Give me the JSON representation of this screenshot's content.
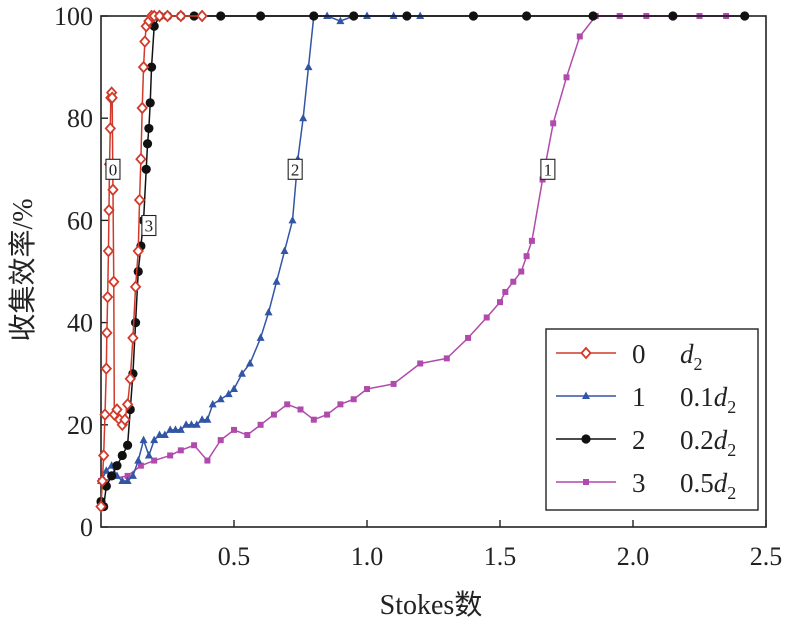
{
  "chart_data": {
    "type": "line",
    "xlabel": "Stokes数",
    "ylabel": "收集效率/%",
    "xlim": [
      0,
      2.5
    ],
    "ylim": [
      0,
      100
    ],
    "x_ticks": [
      "0.5",
      "1.0",
      "1.5",
      "2.0",
      "2.5"
    ],
    "y_ticks": [
      "0",
      "20",
      "40",
      "60",
      "80",
      "100"
    ],
    "grid": false,
    "legend_position": "bottom-right",
    "series": [
      {
        "name": "0",
        "legend_label": "d2",
        "color": "#d13a2a",
        "marker": "diamond-open",
        "x": [
          0.0,
          0.005,
          0.01,
          0.015,
          0.02,
          0.022,
          0.025,
          0.028,
          0.03,
          0.032,
          0.035,
          0.037,
          0.04,
          0.042,
          0.045,
          0.048,
          0.05,
          0.06,
          0.07,
          0.08,
          0.09,
          0.1,
          0.11,
          0.12,
          0.13,
          0.14,
          0.145,
          0.15,
          0.155,
          0.16,
          0.165,
          0.17,
          0.18,
          0.19,
          0.2,
          0.22,
          0.25,
          0.3,
          0.38
        ],
        "y": [
          4,
          9,
          14,
          22,
          31,
          38,
          45,
          54,
          62,
          71,
          78,
          84,
          85,
          84,
          66,
          48,
          22,
          23,
          21,
          20,
          21,
          24,
          29,
          37,
          47,
          54,
          64,
          72,
          82,
          90,
          95,
          98,
          99,
          100,
          100,
          100,
          100,
          100,
          100
        ]
      },
      {
        "name": "1",
        "legend_label": "0.1d2",
        "color": "#3355a5",
        "marker": "triangle",
        "x": [
          0.0,
          0.02,
          0.04,
          0.06,
          0.08,
          0.1,
          0.12,
          0.14,
          0.16,
          0.18,
          0.2,
          0.22,
          0.24,
          0.26,
          0.28,
          0.3,
          0.32,
          0.34,
          0.36,
          0.38,
          0.4,
          0.42,
          0.45,
          0.48,
          0.5,
          0.53,
          0.56,
          0.6,
          0.63,
          0.66,
          0.69,
          0.72,
          0.74,
          0.76,
          0.78,
          0.8,
          0.85,
          0.9,
          0.95,
          1.0,
          1.1,
          1.2
        ],
        "y": [
          9,
          11,
          12,
          10,
          9,
          9,
          10,
          13,
          17,
          14,
          17,
          18,
          18,
          19,
          19,
          19,
          20,
          20,
          20,
          21,
          21,
          24,
          25,
          26,
          27,
          30,
          32,
          37,
          42,
          48,
          54,
          60,
          72,
          80,
          90,
          100,
          100,
          99,
          100,
          100,
          100,
          100
        ]
      },
      {
        "name": "2",
        "legend_label": "0.2d2",
        "color": "#111111",
        "marker": "circle",
        "x": [
          0.0,
          0.01,
          0.02,
          0.04,
          0.06,
          0.08,
          0.1,
          0.11,
          0.12,
          0.13,
          0.14,
          0.15,
          0.16,
          0.17,
          0.175,
          0.18,
          0.185,
          0.19,
          0.2,
          0.22,
          0.25,
          0.3,
          0.35,
          0.45,
          0.6,
          0.8,
          0.95,
          1.15,
          1.4,
          1.6,
          1.85,
          2.15,
          2.42
        ],
        "y": [
          5,
          4,
          8,
          10,
          12,
          14,
          16,
          23,
          30,
          40,
          50,
          55,
          60,
          70,
          75,
          78,
          83,
          90,
          98,
          100,
          100,
          100,
          100,
          100,
          100,
          100,
          100,
          100,
          100,
          100,
          100,
          100,
          100
        ]
      },
      {
        "name": "3",
        "legend_label": "0.5d2",
        "color": "#b04aac",
        "marker": "square",
        "x": [
          0.0,
          0.1,
          0.15,
          0.2,
          0.26,
          0.3,
          0.35,
          0.4,
          0.45,
          0.5,
          0.55,
          0.6,
          0.65,
          0.7,
          0.75,
          0.8,
          0.85,
          0.9,
          0.95,
          1.0,
          1.1,
          1.2,
          1.3,
          1.38,
          1.45,
          1.5,
          1.52,
          1.55,
          1.58,
          1.6,
          1.62,
          1.66,
          1.7,
          1.75,
          1.8,
          1.86,
          1.95,
          2.05,
          2.15,
          2.25,
          2.35,
          2.42
        ],
        "y": [
          9,
          10,
          12,
          13,
          14,
          15,
          16,
          13,
          17,
          19,
          18,
          20,
          22,
          24,
          23,
          21,
          22,
          24,
          25,
          27,
          28,
          32,
          33,
          37,
          41,
          44,
          46,
          48,
          50,
          53,
          56,
          68,
          79,
          88,
          96,
          100,
          100,
          100,
          100,
          100,
          100,
          100
        ]
      }
    ],
    "annotations": [
      {
        "text": "0",
        "x": 0.045,
        "y": 70
      },
      {
        "text": "3",
        "x": 0.18,
        "y": 59
      },
      {
        "text": "2",
        "x": 0.73,
        "y": 70
      },
      {
        "text": "1",
        "x": 1.68,
        "y": 70
      }
    ]
  }
}
